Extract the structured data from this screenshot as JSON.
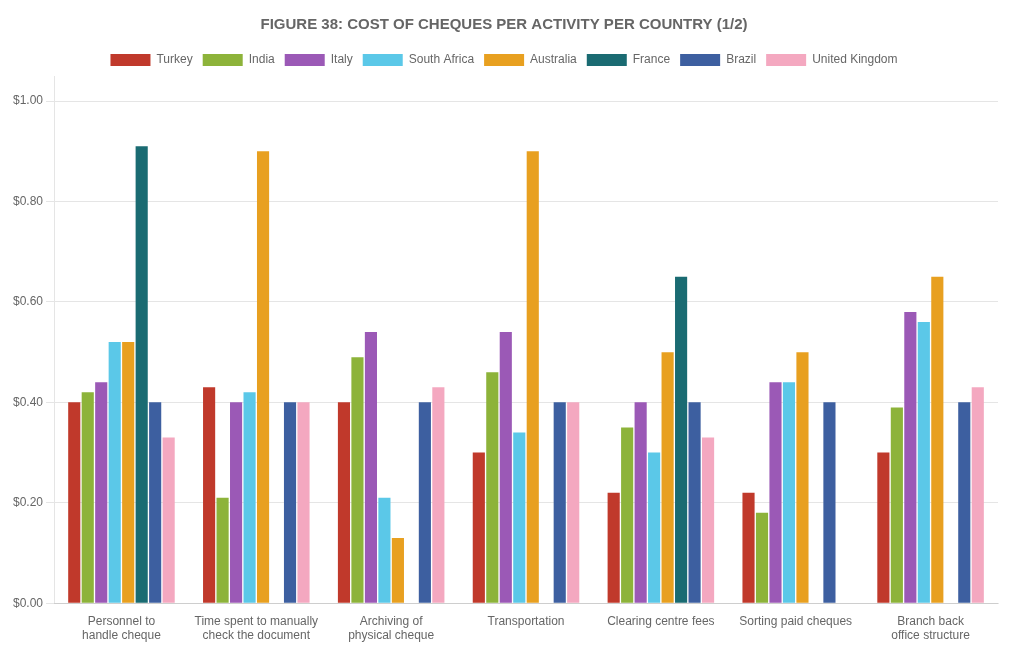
{
  "chart_data": {
    "type": "bar",
    "title": "FIGURE 38: COST OF CHEQUES PER ACTIVITY PER COUNTRY (1/2)",
    "categories": [
      "Personnel to\nhandle cheque",
      "Time spent to manually\ncheck the document",
      "Archiving of\nphysical cheque",
      "Transportation",
      "Clearing centre fees",
      "Sorting paid cheques",
      "Branch back\noffice structure"
    ],
    "series": [
      {
        "name": "Turkey",
        "color": "#c0392b",
        "values": [
          0.4,
          0.43,
          0.4,
          0.3,
          0.22,
          0.22,
          0.3
        ]
      },
      {
        "name": "India",
        "color": "#8db33a",
        "values": [
          0.42,
          0.21,
          0.49,
          0.46,
          0.35,
          0.18,
          0.39
        ]
      },
      {
        "name": "Italy",
        "color": "#9b59b6",
        "values": [
          0.44,
          0.4,
          0.54,
          0.54,
          0.4,
          0.44,
          0.58
        ]
      },
      {
        "name": "South Africa",
        "color": "#5bc8e8",
        "values": [
          0.52,
          0.42,
          0.21,
          0.34,
          0.3,
          0.44,
          0.56
        ]
      },
      {
        "name": "Australia",
        "color": "#e8a020",
        "values": [
          0.52,
          0.9,
          0.13,
          0.9,
          0.5,
          0.5,
          0.65
        ]
      },
      {
        "name": "France",
        "color": "#1a6b72",
        "values": [
          0.91,
          0.0,
          0.0,
          0.0,
          0.65,
          0.0,
          0.0
        ]
      },
      {
        "name": "Brazil",
        "color": "#3d5fa0",
        "values": [
          0.4,
          0.4,
          0.4,
          0.4,
          0.4,
          0.4,
          0.4
        ]
      },
      {
        "name": "United Kingdom",
        "color": "#f4a8c0",
        "values": [
          0.33,
          0.4,
          0.43,
          0.4,
          0.33,
          0.0,
          0.43
        ]
      }
    ],
    "ylim": [
      0,
      1.05
    ],
    "yticks": [
      {
        "value": 0.0,
        "label": "$0.00"
      },
      {
        "value": 0.2,
        "label": "$0.20"
      },
      {
        "value": 0.4,
        "label": "$0.40"
      },
      {
        "value": 0.6,
        "label": "$0.60"
      },
      {
        "value": 0.8,
        "label": "$0.80"
      },
      {
        "value": 1.0,
        "label": "$1.00"
      }
    ],
    "grid": true
  }
}
